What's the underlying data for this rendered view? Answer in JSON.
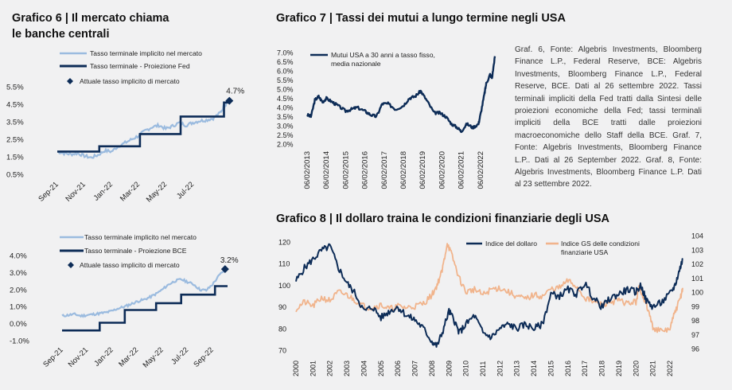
{
  "titles": {
    "g6_line1": "Grafico 6 | Il mercato chiama",
    "g6_line2": "le banche centrali",
    "g7": "Grafico 7 | Tassi dei mutui a lungo termine negli USA",
    "g8": "Grafico 8 | Il dollaro traina le condizioni finanziarie degli USA"
  },
  "notes": {
    "text": "Graf. 6, Fonte: Algebris Investments, Bloomberg Finance L.P., Federal Reserve, BCE: Algebris Investments, Bloomberg Finance L.P., Federal Reserve, BCE. Dati al 26 settembre 2022. Tassi terminali impliciti della Fed tratti dalla Sintesi delle proiezioni economiche della Fed; tassi terminali impliciti della BCE tratti dalle proiezioni macroeconomiche dello Staff della BCE. Graf. 7, Fonte: Algebris Investments, Bloomberg Finance L.P.. Dati al 26 September 2022. Graf. 8, Fonte: Algebris Investments, Bloomberg Finance L.P. Dati al 23 settembre 2022."
  },
  "colors": {
    "light": "#9bbbdf",
    "dark": "#0d2c57",
    "orange": "#f1b48c"
  },
  "chart_data": [
    {
      "id": "fed",
      "type": "line",
      "x_tick_labels": [
        "Sep-21",
        "Nov-21",
        "Jan-22",
        "Mar-22",
        "May-22",
        "Jul-22"
      ],
      "y_tick_labels": [
        "0.5%",
        "1.5%",
        "2.5%",
        "3.5%",
        "4.5%",
        "5.5%"
      ],
      "ylim": [
        0.5,
        5.5
      ],
      "x_range_months": [
        0,
        12.8
      ],
      "legend": [
        "Tasso terminale implicito nel mercato",
        "Tasso terminale - Proiezione Fed",
        "Attuale tasso implicito di mercato"
      ],
      "series": [
        {
          "name": "Tasso terminale implicito nel mercato",
          "x": [
            0,
            0.5,
            1,
            1.5,
            2,
            2.5,
            3,
            3.5,
            4,
            4.5,
            5,
            5.5,
            6,
            6.5,
            7,
            7.5,
            8,
            8.5,
            9,
            9.5,
            10,
            10.5,
            11,
            11.5,
            12,
            12.3,
            12.5,
            12.8
          ],
          "y": [
            1.8,
            1.7,
            1.65,
            1.7,
            1.55,
            1.45,
            1.6,
            1.85,
            1.8,
            2.1,
            2.3,
            2.5,
            2.7,
            3.0,
            3.2,
            3.3,
            3.1,
            3.25,
            3.45,
            3.3,
            3.45,
            3.55,
            3.6,
            3.7,
            4.0,
            4.35,
            4.6,
            4.7
          ]
        },
        {
          "name": "Tasso terminale - Proiezione Fed",
          "x": [
            0,
            3.1,
            3.1,
            6.1,
            6.1,
            9.1,
            9.1,
            12.3,
            12.3,
            12.8
          ],
          "y": [
            1.8,
            1.8,
            2.1,
            2.1,
            2.8,
            2.8,
            3.8,
            3.8,
            4.6,
            4.6
          ]
        }
      ],
      "current": {
        "x": 12.7,
        "y": 4.7,
        "label": "4.7%"
      }
    },
    {
      "id": "ecb",
      "type": "line",
      "x_tick_labels": [
        "Sep-21",
        "Nov-21",
        "Jan-22",
        "Mar-22",
        "May-22",
        "Jul-22",
        "Sep-22"
      ],
      "y_tick_labels": [
        "-1.0%",
        "0.0%",
        "1.0%",
        "2.0%",
        "3.0%",
        "4.0%"
      ],
      "ylim": [
        -1.0,
        4.0
      ],
      "x_range_months": [
        0,
        13.2
      ],
      "legend": [
        "Tasso terminale implicito nel mercato",
        "Tasso terminale - Proiezione BCE",
        "Attuale tasso implicito di mercato"
      ],
      "series": [
        {
          "name": "Tasso terminale implicito nel mercato",
          "x": [
            0,
            0.5,
            1,
            1.5,
            2,
            2.5,
            3,
            3.5,
            4,
            4.5,
            5,
            5.5,
            6,
            6.5,
            7,
            7.5,
            8,
            8.5,
            9,
            9.5,
            10,
            10.5,
            11,
            11.5,
            12,
            12.5,
            13
          ],
          "y": [
            0.45,
            0.5,
            0.55,
            0.45,
            0.5,
            0.55,
            0.6,
            0.65,
            0.75,
            0.9,
            1.0,
            1.15,
            1.3,
            1.4,
            1.55,
            1.75,
            2.0,
            2.3,
            2.5,
            2.6,
            2.45,
            2.3,
            2.0,
            1.95,
            2.3,
            2.8,
            3.2
          ]
        },
        {
          "name": "Tasso terminale - Proiezione BCE",
          "x": [
            0,
            3,
            3,
            5,
            5,
            7.5,
            7.5,
            9.5,
            9.5,
            12.2,
            12.2,
            13.2
          ],
          "y": [
            -0.4,
            -0.4,
            0.05,
            0.05,
            0.8,
            0.8,
            1.2,
            1.2,
            1.7,
            1.7,
            2.2,
            2.2
          ]
        }
      ],
      "current": {
        "x": 13.0,
        "y": 3.2,
        "label": "3.2%"
      }
    },
    {
      "id": "mortgage",
      "type": "line",
      "x_tick_labels": [
        "06/02/2013",
        "06/02/2014",
        "06/02/2015",
        "06/02/2016",
        "06/02/2017",
        "06/02/2018",
        "06/02/2019",
        "06/02/2020",
        "06/02/2021",
        "06/02/2022"
      ],
      "y_tick_labels": [
        "2.0%",
        "2.5%",
        "3.0%",
        "3.5%",
        "4.0%",
        "4.5%",
        "5.0%",
        "5.5%",
        "6.0%",
        "6.5%",
        "7.0%"
      ],
      "ylim": [
        2.0,
        7.0
      ],
      "x_range_years": [
        2013,
        2022.75
      ],
      "legend": [
        "Mutui USA a 30 anni a tasso fisso,",
        "media nazionale"
      ],
      "series": [
        {
          "name": "Mutui USA a 30 anni a tasso fisso, media nazionale",
          "x": [
            2013.0,
            2013.2,
            2013.4,
            2013.6,
            2013.8,
            2014.0,
            2014.3,
            2014.6,
            2015.0,
            2015.3,
            2015.6,
            2016.0,
            2016.3,
            2016.6,
            2016.9,
            2017.2,
            2017.6,
            2018.0,
            2018.3,
            2018.6,
            2018.9,
            2019.2,
            2019.6,
            2019.9,
            2020.2,
            2020.5,
            2020.8,
            2021.0,
            2021.3,
            2021.6,
            2021.9,
            2022.0,
            2022.2,
            2022.3,
            2022.5,
            2022.6,
            2022.75
          ],
          "y": [
            3.6,
            3.5,
            4.4,
            4.6,
            4.3,
            4.5,
            4.3,
            4.1,
            3.8,
            3.9,
            4.0,
            3.8,
            3.6,
            3.5,
            4.2,
            4.2,
            3.9,
            4.1,
            4.5,
            4.6,
            4.9,
            4.4,
            3.7,
            3.7,
            3.5,
            3.1,
            2.9,
            2.7,
            3.1,
            2.9,
            3.1,
            3.6,
            4.7,
            5.3,
            5.8,
            5.6,
            6.8
          ]
        }
      ]
    },
    {
      "id": "dollar",
      "type": "line",
      "x_tick_labels": [
        "2000",
        "2001",
        "2002",
        "2003",
        "2004",
        "2005",
        "2006",
        "2007",
        "2008",
        "2009",
        "2010",
        "2011",
        "2012",
        "2013",
        "2014",
        "2015",
        "2016",
        "2017",
        "2018",
        "2019",
        "2020",
        "2021",
        "2022"
      ],
      "y_tick_labels": [
        "70",
        "80",
        "90",
        "100",
        "110",
        "120"
      ],
      "y2_tick_labels": [
        "96",
        "97",
        "98",
        "99",
        "100",
        "101",
        "102",
        "103",
        "104"
      ],
      "ylim": [
        70,
        120
      ],
      "y2lim": [
        96,
        104
      ],
      "x_range_years": [
        2000,
        2022.75
      ],
      "legend": [
        "Indice del dollaro",
        "Indice GS delle condizioni",
        "finanziarie USA"
      ],
      "series": [
        {
          "name": "Indice del dollaro",
          "axis": "left",
          "x": [
            2000.0,
            2000.5,
            2001.0,
            2001.5,
            2002.0,
            2002.5,
            2003.0,
            2003.5,
            2004.0,
            2004.5,
            2005.0,
            2005.5,
            2006.0,
            2006.5,
            2007.0,
            2007.5,
            2008.0,
            2008.3,
            2008.6,
            2009.0,
            2009.3,
            2009.6,
            2010.0,
            2010.5,
            2011.0,
            2011.5,
            2012.0,
            2012.5,
            2013.0,
            2013.5,
            2014.0,
            2014.5,
            2015.0,
            2015.5,
            2016.0,
            2016.5,
            2017.0,
            2017.5,
            2018.0,
            2018.5,
            2019.0,
            2019.5,
            2020.0,
            2020.3,
            2020.6,
            2021.0,
            2021.5,
            2022.0,
            2022.3,
            2022.6,
            2022.75
          ],
          "y": [
            102,
            108,
            112,
            116,
            118,
            108,
            101,
            96,
            88,
            90,
            85,
            88,
            90,
            86,
            84,
            80,
            74,
            72,
            78,
            88,
            84,
            78,
            82,
            86,
            78,
            76,
            80,
            82,
            80,
            82,
            80,
            82,
            96,
            95,
            98,
            96,
            101,
            94,
            90,
            94,
            96,
            98,
            97,
            100,
            93,
            90,
            92,
            96,
            100,
            108,
            112
          ]
        },
        {
          "name": "Indice GS delle condizioni finanziarie USA",
          "axis": "right",
          "x": [
            2000.0,
            2000.5,
            2001.0,
            2001.5,
            2002.0,
            2002.5,
            2003.0,
            2003.5,
            2004.0,
            2004.5,
            2005.0,
            2005.5,
            2006.0,
            2006.5,
            2007.0,
            2007.5,
            2008.0,
            2008.3,
            2008.6,
            2008.9,
            2009.2,
            2009.6,
            2010.0,
            2010.5,
            2011.0,
            2011.5,
            2012.0,
            2012.5,
            2013.0,
            2013.5,
            2014.0,
            2014.5,
            2015.0,
            2015.5,
            2016.0,
            2016.5,
            2017.0,
            2017.5,
            2018.0,
            2018.5,
            2019.0,
            2019.5,
            2020.0,
            2020.2,
            2020.4,
            2020.7,
            2021.0,
            2021.5,
            2022.0,
            2022.3,
            2022.6,
            2022.75
          ],
          "y": [
            98.8,
            99.3,
            99.0,
            99.6,
            99.4,
            100.0,
            99.8,
            99.4,
            99.0,
            98.9,
            99.1,
            98.8,
            99.0,
            98.9,
            99.0,
            99.2,
            99.8,
            100.5,
            101.5,
            103.5,
            102.5,
            101.0,
            100.0,
            100.2,
            99.8,
            100.2,
            100.3,
            100.0,
            99.7,
            99.5,
            99.8,
            99.7,
            100.2,
            100.3,
            100.8,
            100.4,
            99.6,
            99.3,
            99.1,
            99.3,
            99.4,
            99.2,
            99.3,
            100.4,
            99.8,
            98.8,
            97.5,
            97.2,
            97.4,
            98.6,
            99.5,
            100.3
          ]
        }
      ]
    }
  ]
}
